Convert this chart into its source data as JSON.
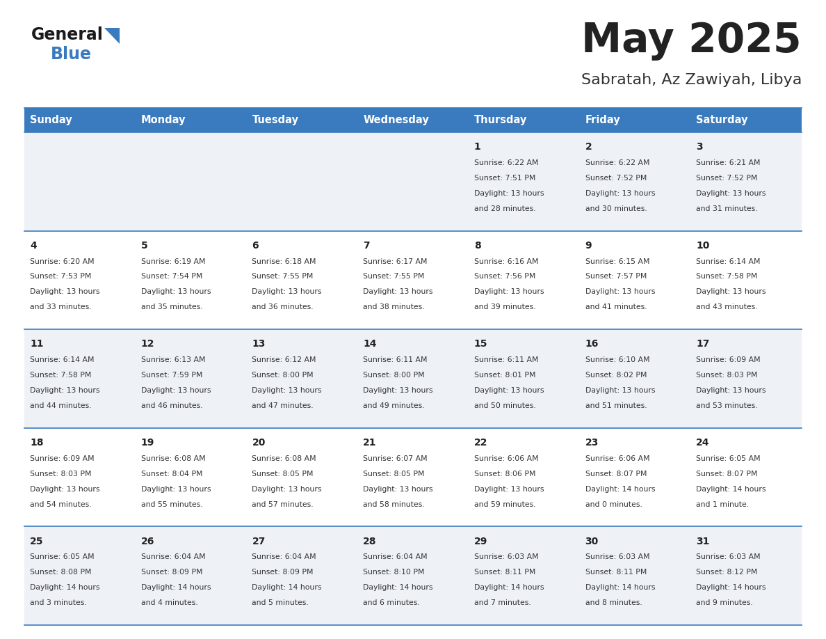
{
  "title": "May 2025",
  "subtitle": "Sabratah, Az Zawiyah, Libya",
  "days_of_week": [
    "Sunday",
    "Monday",
    "Tuesday",
    "Wednesday",
    "Thursday",
    "Friday",
    "Saturday"
  ],
  "header_bg": "#3a7abf",
  "header_text": "#ffffff",
  "row_bg_odd": "#eef2f7",
  "row_bg_even": "#ffffff",
  "separator_color": "#3a7abf",
  "title_color": "#222222",
  "subtitle_color": "#333333",
  "day_number_color": "#222222",
  "cell_text_color": "#333333",
  "calendar": [
    [
      null,
      null,
      null,
      null,
      {
        "day": 1,
        "sunrise": "6:22 AM",
        "sunset": "7:51 PM",
        "daylight": "13 hours",
        "daylight2": "and 28 minutes."
      },
      {
        "day": 2,
        "sunrise": "6:22 AM",
        "sunset": "7:52 PM",
        "daylight": "13 hours",
        "daylight2": "and 30 minutes."
      },
      {
        "day": 3,
        "sunrise": "6:21 AM",
        "sunset": "7:52 PM",
        "daylight": "13 hours",
        "daylight2": "and 31 minutes."
      }
    ],
    [
      {
        "day": 4,
        "sunrise": "6:20 AM",
        "sunset": "7:53 PM",
        "daylight": "13 hours",
        "daylight2": "and 33 minutes."
      },
      {
        "day": 5,
        "sunrise": "6:19 AM",
        "sunset": "7:54 PM",
        "daylight": "13 hours",
        "daylight2": "and 35 minutes."
      },
      {
        "day": 6,
        "sunrise": "6:18 AM",
        "sunset": "7:55 PM",
        "daylight": "13 hours",
        "daylight2": "and 36 minutes."
      },
      {
        "day": 7,
        "sunrise": "6:17 AM",
        "sunset": "7:55 PM",
        "daylight": "13 hours",
        "daylight2": "and 38 minutes."
      },
      {
        "day": 8,
        "sunrise": "6:16 AM",
        "sunset": "7:56 PM",
        "daylight": "13 hours",
        "daylight2": "and 39 minutes."
      },
      {
        "day": 9,
        "sunrise": "6:15 AM",
        "sunset": "7:57 PM",
        "daylight": "13 hours",
        "daylight2": "and 41 minutes."
      },
      {
        "day": 10,
        "sunrise": "6:14 AM",
        "sunset": "7:58 PM",
        "daylight": "13 hours",
        "daylight2": "and 43 minutes."
      }
    ],
    [
      {
        "day": 11,
        "sunrise": "6:14 AM",
        "sunset": "7:58 PM",
        "daylight": "13 hours",
        "daylight2": "and 44 minutes."
      },
      {
        "day": 12,
        "sunrise": "6:13 AM",
        "sunset": "7:59 PM",
        "daylight": "13 hours",
        "daylight2": "and 46 minutes."
      },
      {
        "day": 13,
        "sunrise": "6:12 AM",
        "sunset": "8:00 PM",
        "daylight": "13 hours",
        "daylight2": "and 47 minutes."
      },
      {
        "day": 14,
        "sunrise": "6:11 AM",
        "sunset": "8:00 PM",
        "daylight": "13 hours",
        "daylight2": "and 49 minutes."
      },
      {
        "day": 15,
        "sunrise": "6:11 AM",
        "sunset": "8:01 PM",
        "daylight": "13 hours",
        "daylight2": "and 50 minutes."
      },
      {
        "day": 16,
        "sunrise": "6:10 AM",
        "sunset": "8:02 PM",
        "daylight": "13 hours",
        "daylight2": "and 51 minutes."
      },
      {
        "day": 17,
        "sunrise": "6:09 AM",
        "sunset": "8:03 PM",
        "daylight": "13 hours",
        "daylight2": "and 53 minutes."
      }
    ],
    [
      {
        "day": 18,
        "sunrise": "6:09 AM",
        "sunset": "8:03 PM",
        "daylight": "13 hours",
        "daylight2": "and 54 minutes."
      },
      {
        "day": 19,
        "sunrise": "6:08 AM",
        "sunset": "8:04 PM",
        "daylight": "13 hours",
        "daylight2": "and 55 minutes."
      },
      {
        "day": 20,
        "sunrise": "6:08 AM",
        "sunset": "8:05 PM",
        "daylight": "13 hours",
        "daylight2": "and 57 minutes."
      },
      {
        "day": 21,
        "sunrise": "6:07 AM",
        "sunset": "8:05 PM",
        "daylight": "13 hours",
        "daylight2": "and 58 minutes."
      },
      {
        "day": 22,
        "sunrise": "6:06 AM",
        "sunset": "8:06 PM",
        "daylight": "13 hours",
        "daylight2": "and 59 minutes."
      },
      {
        "day": 23,
        "sunrise": "6:06 AM",
        "sunset": "8:07 PM",
        "daylight": "14 hours",
        "daylight2": "and 0 minutes."
      },
      {
        "day": 24,
        "sunrise": "6:05 AM",
        "sunset": "8:07 PM",
        "daylight": "14 hours",
        "daylight2": "and 1 minute."
      }
    ],
    [
      {
        "day": 25,
        "sunrise": "6:05 AM",
        "sunset": "8:08 PM",
        "daylight": "14 hours",
        "daylight2": "and 3 minutes."
      },
      {
        "day": 26,
        "sunrise": "6:04 AM",
        "sunset": "8:09 PM",
        "daylight": "14 hours",
        "daylight2": "and 4 minutes."
      },
      {
        "day": 27,
        "sunrise": "6:04 AM",
        "sunset": "8:09 PM",
        "daylight": "14 hours",
        "daylight2": "and 5 minutes."
      },
      {
        "day": 28,
        "sunrise": "6:04 AM",
        "sunset": "8:10 PM",
        "daylight": "14 hours",
        "daylight2": "and 6 minutes."
      },
      {
        "day": 29,
        "sunrise": "6:03 AM",
        "sunset": "8:11 PM",
        "daylight": "14 hours",
        "daylight2": "and 7 minutes."
      },
      {
        "day": 30,
        "sunrise": "6:03 AM",
        "sunset": "8:11 PM",
        "daylight": "14 hours",
        "daylight2": "and 8 minutes."
      },
      {
        "day": 31,
        "sunrise": "6:03 AM",
        "sunset": "8:12 PM",
        "daylight": "14 hours",
        "daylight2": "and 9 minutes."
      }
    ]
  ],
  "logo_general_color": "#1a1a1a",
  "logo_blue_color": "#3a7abf",
  "logo_triangle_color": "#3a7abf"
}
